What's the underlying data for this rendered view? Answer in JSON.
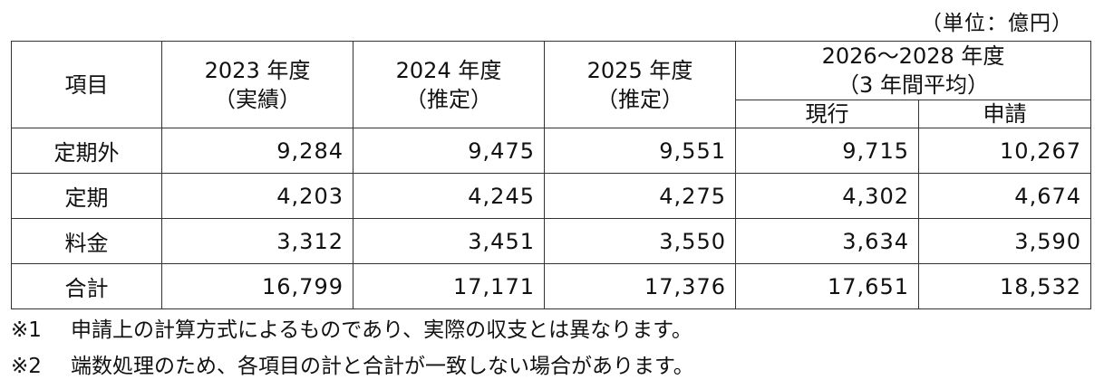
{
  "unit_label": "（単位：億円）",
  "table": {
    "header": {
      "item": "項目",
      "col_2023": [
        "2023 年度",
        "（実績）"
      ],
      "col_2024": [
        "2024 年度",
        "（推定）"
      ],
      "col_2025": [
        "2025 年度",
        "（推定）"
      ],
      "col_2026_2028": [
        "2026～2028 年度",
        "（3 年間平均）"
      ],
      "sub_current": "現行",
      "sub_request": "申請"
    },
    "rows": [
      {
        "item": "定期外",
        "v2023": "9,284",
        "v2024": "9,475",
        "v2025": "9,551",
        "current": "9,715",
        "request": "10,267"
      },
      {
        "item": "定期",
        "v2023": "4,203",
        "v2024": "4,245",
        "v2025": "4,275",
        "current": "4,302",
        "request": "4,674"
      },
      {
        "item": "料金",
        "v2023": "3,312",
        "v2024": "3,451",
        "v2025": "3,550",
        "current": "3,634",
        "request": "3,590"
      },
      {
        "item": "合計",
        "v2023": "16,799",
        "v2024": "17,171",
        "v2025": "17,376",
        "current": "17,651",
        "request": "18,532"
      }
    ]
  },
  "notes": [
    {
      "mark": "※1",
      "text": "申請上の計算方式によるものであり、実際の収支とは異なります。"
    },
    {
      "mark": "※2",
      "text": "端数処理のため、各項目の計と合計が一致しない場合があります。"
    }
  ]
}
